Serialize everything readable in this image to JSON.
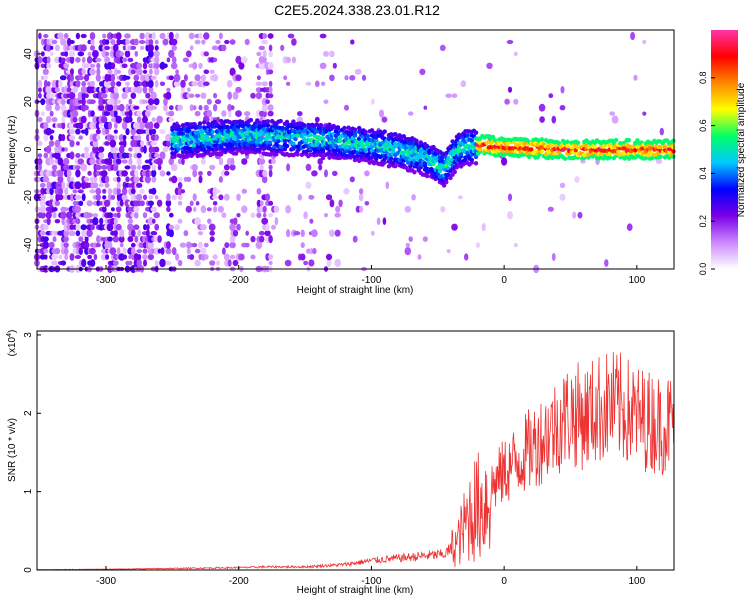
{
  "title": "C2E5.2024.338.23.01.R12",
  "chart_data": [
    {
      "type": "heatmap",
      "xlabel": "Height of straight line (km)",
      "ylabel": "Frequency (Hz)",
      "xlim": [
        -352,
        128
      ],
      "ylim": [
        -50,
        50
      ],
      "xticks": [
        -300,
        -200,
        -100,
        0,
        100
      ],
      "yticks": [
        -40,
        -20,
        0,
        20,
        40
      ],
      "colorbar": {
        "label": "Normalized spectral amplitude",
        "range": [
          0,
          1
        ],
        "ticks": [
          "0.0",
          "0.2",
          "0.4",
          "0.6",
          "0.8"
        ],
        "colors": [
          "#ffffff",
          "#cc88ff",
          "#7a00e6",
          "#0000ff",
          "#00c8ff",
          "#00ff66",
          "#ffff00",
          "#ff8800",
          "#ff0000",
          "#ff33aa"
        ]
      },
      "signal_trace": {
        "x": [
          -250,
          -200,
          -150,
          -100,
          -80,
          -60,
          -45,
          -35,
          -30,
          -20,
          0,
          50,
          128
        ],
        "y": [
          4,
          6,
          5,
          2,
          0,
          -3,
          -8,
          0,
          1,
          2,
          1,
          0,
          0
        ]
      }
    },
    {
      "type": "line",
      "xlabel": "Height of straight line (km)",
      "ylabel": "SNR (10 * v/v)",
      "yscale_label": "(x10^4)",
      "xlim": [
        -352,
        128
      ],
      "ylim": [
        0,
        3.05
      ],
      "xticks": [
        -300,
        -200,
        -100,
        0,
        100
      ],
      "yticks": [
        0,
        1,
        2,
        3
      ],
      "color": "#ee3333",
      "series": [
        {
          "x": [
            -352,
            -300,
            -250,
            -200,
            -180,
            -150,
            -120,
            -100,
            -80,
            -60,
            -45,
            -35,
            -30,
            -25,
            -20,
            -15,
            -10,
            0,
            10,
            20,
            30,
            40,
            50,
            60,
            70,
            80,
            90,
            100,
            110,
            120,
            128
          ],
          "y": [
            0.005,
            0.01,
            0.02,
            0.03,
            0.04,
            0.04,
            0.07,
            0.12,
            0.15,
            0.18,
            0.2,
            0.35,
            0.55,
            0.75,
            0.8,
            0.85,
            1.05,
            1.25,
            1.4,
            1.55,
            1.7,
            1.85,
            2.0,
            1.95,
            2.05,
            2.1,
            2.05,
            1.95,
            1.9,
            1.85,
            1.9
          ]
        }
      ]
    }
  ]
}
